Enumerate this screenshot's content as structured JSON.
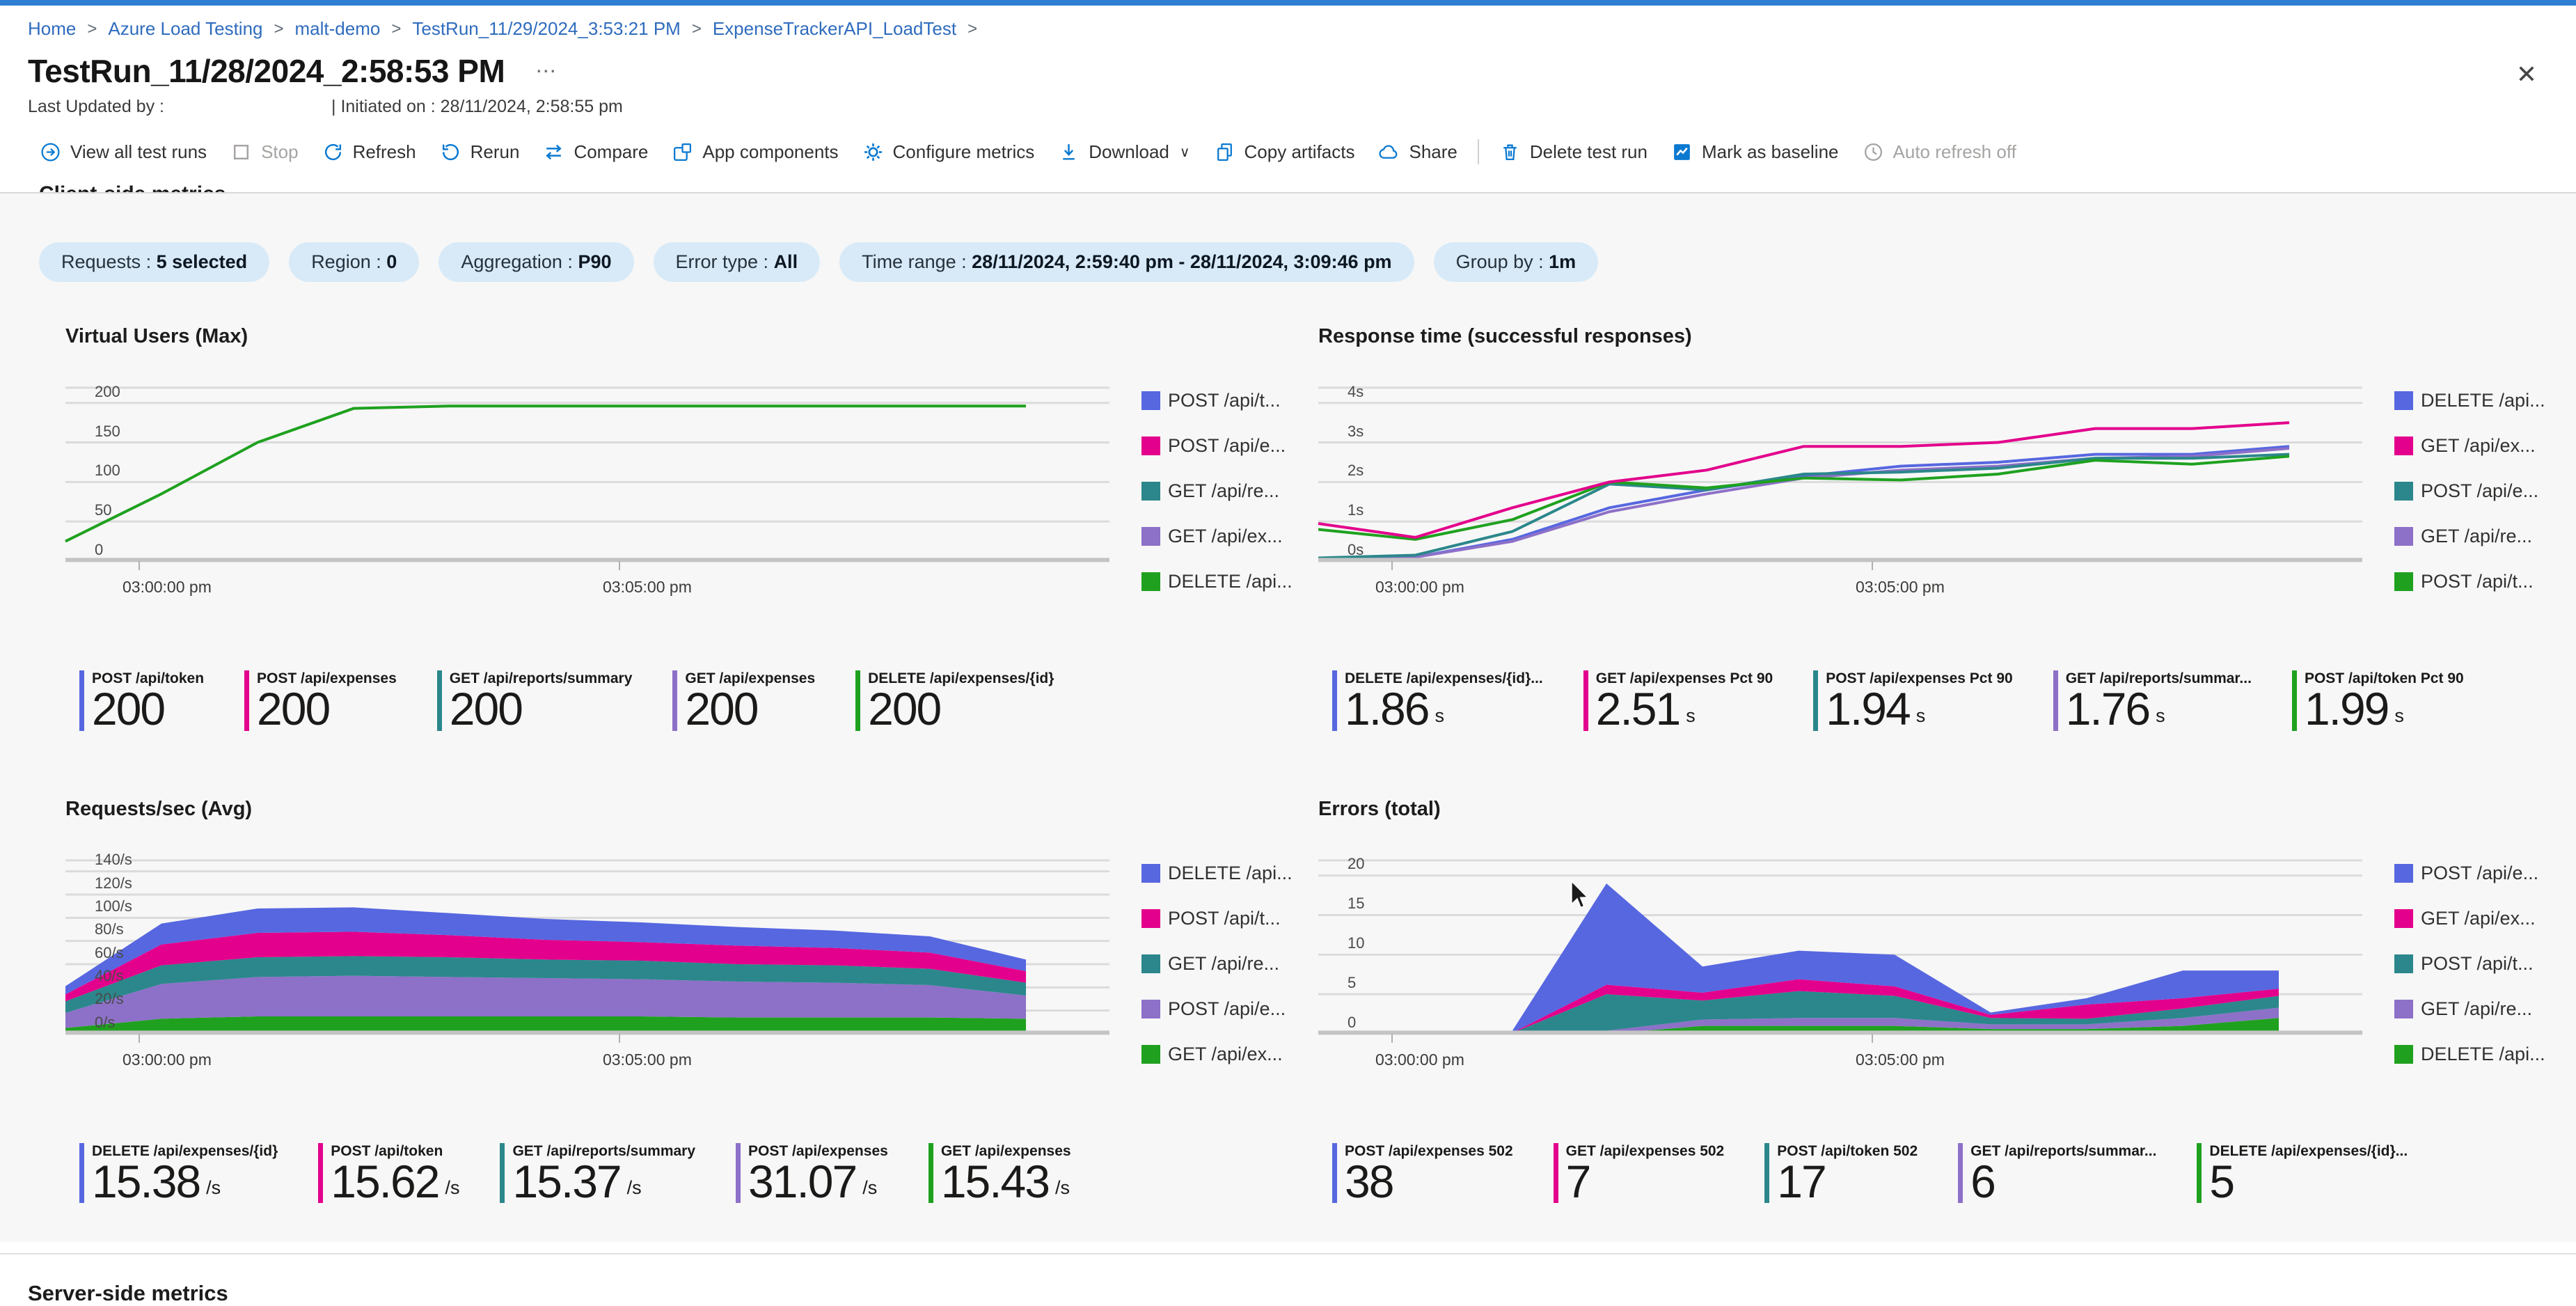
{
  "colors": {
    "blue": "#5767e0",
    "magenta": "#e3008c",
    "teal": "#2b878b",
    "purple": "#8d70c8",
    "green": "#1fa11f"
  },
  "breadcrumb": {
    "items": [
      {
        "label": "Home",
        "sep": ">"
      },
      {
        "label": "Azure Load Testing",
        "sep": ">"
      },
      {
        "label": "malt-demo",
        "sep": ">"
      },
      {
        "label": "TestRun_11/29/2024_3:53:21 PM",
        "sep": ">"
      },
      {
        "label": "ExpenseTrackerAPI_LoadTest",
        "sep": ">"
      }
    ]
  },
  "header": {
    "title": "TestRun_11/28/2024_2:58:53 PM",
    "ellipsis": "⋯",
    "close": "✕",
    "last_updated": "Last Updated by :",
    "initiated": "| Initiated on : 28/11/2024, 2:58:55 pm"
  },
  "toolbar": {
    "view_all": "View all test runs",
    "stop": "Stop",
    "refresh": "Refresh",
    "rerun": "Rerun",
    "compare": "Compare",
    "app_components": "App components",
    "configure_metrics": "Configure metrics",
    "download": "Download",
    "download_chevron": "∨",
    "copy_artifacts": "Copy artifacts",
    "share": "Share",
    "delete": "Delete test run",
    "baseline": "Mark as baseline",
    "auto_refresh": "Auto refresh off"
  },
  "sections": {
    "client_side": "Client-side metrics",
    "server_side": "Server-side metrics"
  },
  "filters": {
    "pills": [
      {
        "label": "Requests :",
        "value": "5 selected"
      },
      {
        "label": "Region :",
        "value": "0"
      },
      {
        "label": "Aggregation :",
        "value": "P90"
      },
      {
        "label": "Error type :",
        "value": "All"
      },
      {
        "label": "Time range :",
        "value": "28/11/2024, 2:59:40 pm - 28/11/2024, 3:09:46 pm"
      },
      {
        "label": "Group by :",
        "value": "1m"
      }
    ]
  },
  "chart_data": [
    {
      "id": "virtual-users",
      "title": "Virtual Users (Max)",
      "type": "line",
      "ylim": [
        0,
        220
      ],
      "x_span": 0.92,
      "yticks": [
        {
          "v": 0,
          "label": "0"
        },
        {
          "v": 50,
          "label": "50"
        },
        {
          "v": 100,
          "label": "100"
        },
        {
          "v": 150,
          "label": "150"
        },
        {
          "v": 200,
          "label": "200"
        }
      ],
      "xticks": [
        {
          "pos": 0.07,
          "label": "03:00:00 pm"
        },
        {
          "pos": 0.53,
          "label": "03:05:00 pm"
        }
      ],
      "series": [
        {
          "name": "DELETE /api/expenses/{id}",
          "color": "green",
          "values": [
            25,
            85,
            150,
            193,
            196,
            196,
            196,
            196,
            196,
            196,
            196
          ]
        }
      ],
      "legend": [
        {
          "color": "blue",
          "label": "POST /api/t..."
        },
        {
          "color": "magenta",
          "label": "POST /api/e..."
        },
        {
          "color": "teal",
          "label": "GET /api/re..."
        },
        {
          "color": "purple",
          "label": "GET /api/ex..."
        },
        {
          "color": "green",
          "label": "DELETE /api..."
        }
      ],
      "cards": [
        {
          "color": "blue",
          "label": "POST /api/token",
          "value": "200",
          "unit": ""
        },
        {
          "color": "magenta",
          "label": "POST /api/expenses",
          "value": "200",
          "unit": ""
        },
        {
          "color": "teal",
          "label": "GET /api/reports/summary",
          "value": "200",
          "unit": ""
        },
        {
          "color": "purple",
          "label": "GET /api/expenses",
          "value": "200",
          "unit": ""
        },
        {
          "color": "green",
          "label": "DELETE /api/expenses/{id}",
          "value": "200",
          "unit": ""
        }
      ]
    },
    {
      "id": "response-time",
      "title": "Response time (successful responses)",
      "type": "line",
      "ylim": [
        0,
        4.4
      ],
      "x_span": 0.93,
      "yticks": [
        {
          "v": 0,
          "label": "0s"
        },
        {
          "v": 1,
          "label": "1s"
        },
        {
          "v": 2,
          "label": "2s"
        },
        {
          "v": 3,
          "label": "3s"
        },
        {
          "v": 4,
          "label": "4s"
        }
      ],
      "xticks": [
        {
          "pos": 0.07,
          "label": "03:00:00 pm"
        },
        {
          "pos": 0.53,
          "label": "03:05:00 pm"
        }
      ],
      "series": [
        {
          "name": "DELETE /api/expenses/{id} Pct 90",
          "color": "blue",
          "values": [
            0.05,
            0.1,
            0.55,
            1.35,
            1.8,
            2.15,
            2.4,
            2.5,
            2.7,
            2.7,
            2.9
          ]
        },
        {
          "name": "GET /api/reports/summary Pct 90",
          "color": "purple",
          "values": [
            0.05,
            0.1,
            0.5,
            1.25,
            1.7,
            2.1,
            2.3,
            2.4,
            2.6,
            2.65,
            2.85
          ]
        },
        {
          "name": "POST /api/expenses Pct 90",
          "color": "teal",
          "values": [
            0.08,
            0.15,
            0.75,
            1.95,
            1.8,
            2.2,
            2.25,
            2.35,
            2.6,
            2.6,
            2.7
          ]
        },
        {
          "name": "POST /api/token Pct 90",
          "color": "green",
          "values": [
            0.8,
            0.55,
            1.05,
            2.0,
            1.85,
            2.1,
            2.05,
            2.2,
            2.55,
            2.45,
            2.65
          ]
        },
        {
          "name": "GET /api/expenses Pct 90",
          "color": "magenta",
          "values": [
            0.95,
            0.6,
            1.35,
            2.0,
            2.3,
            2.9,
            2.9,
            3.0,
            3.35,
            3.35,
            3.5
          ]
        }
      ],
      "legend": [
        {
          "color": "blue",
          "label": "DELETE /api..."
        },
        {
          "color": "magenta",
          "label": "GET /api/ex..."
        },
        {
          "color": "teal",
          "label": "POST /api/e..."
        },
        {
          "color": "purple",
          "label": "GET /api/re..."
        },
        {
          "color": "green",
          "label": "POST /api/t..."
        }
      ],
      "cards": [
        {
          "color": "blue",
          "label": "DELETE /api/expenses/{id}...",
          "value": "1.86",
          "unit": "s"
        },
        {
          "color": "magenta",
          "label": "GET /api/expenses Pct 90",
          "value": "2.51",
          "unit": "s"
        },
        {
          "color": "teal",
          "label": "POST /api/expenses Pct 90",
          "value": "1.94",
          "unit": "s"
        },
        {
          "color": "purple",
          "label": "GET /api/reports/summar...",
          "value": "1.76",
          "unit": "s"
        },
        {
          "color": "green",
          "label": "POST /api/token Pct 90",
          "value": "1.99",
          "unit": "s"
        }
      ]
    },
    {
      "id": "requests-per-sec",
      "title": "Requests/sec (Avg)",
      "type": "area",
      "ylim": [
        0,
        150
      ],
      "x_span": 0.92,
      "yticks": [
        {
          "v": 0,
          "label": "0/s"
        },
        {
          "v": 20,
          "label": "20/s"
        },
        {
          "v": 40,
          "label": "40/s"
        },
        {
          "v": 60,
          "label": "60/s"
        },
        {
          "v": 80,
          "label": "80/s"
        },
        {
          "v": 100,
          "label": "100/s"
        },
        {
          "v": 120,
          "label": "120/s"
        },
        {
          "v": 140,
          "label": "140/s"
        }
      ],
      "xticks": [
        {
          "pos": 0.07,
          "label": "03:00:00 pm"
        },
        {
          "pos": 0.53,
          "label": "03:05:00 pm"
        }
      ],
      "series": [
        {
          "name": "GET /api/expenses",
          "color": "green",
          "values": [
            5,
            13,
            15,
            15,
            15,
            15,
            15,
            14,
            14,
            14,
            13
          ]
        },
        {
          "name": "POST /api/expenses",
          "color": "purple",
          "values": [
            13,
            30,
            34,
            35,
            34,
            33,
            32,
            31,
            30,
            28,
            20
          ]
        },
        {
          "name": "GET /api/reports/summary",
          "color": "teal",
          "values": [
            10,
            16,
            17,
            17,
            17,
            16,
            16,
            15,
            15,
            14,
            11
          ]
        },
        {
          "name": "POST /api/token",
          "color": "magenta",
          "values": [
            6,
            18,
            21,
            21,
            19,
            17,
            16,
            16,
            15,
            14,
            10
          ]
        },
        {
          "name": "DELETE /api/expenses/{id}",
          "color": "blue",
          "values": [
            7,
            18,
            21,
            21,
            19,
            18,
            17,
            16,
            15,
            14,
            10
          ]
        }
      ],
      "legend": [
        {
          "color": "blue",
          "label": "DELETE /api..."
        },
        {
          "color": "magenta",
          "label": "POST /api/t..."
        },
        {
          "color": "teal",
          "label": "GET /api/re..."
        },
        {
          "color": "purple",
          "label": "POST /api/e..."
        },
        {
          "color": "green",
          "label": "GET /api/ex..."
        }
      ],
      "cards": [
        {
          "color": "blue",
          "label": "DELETE /api/expenses/{id}",
          "value": "15.38",
          "unit": "/s"
        },
        {
          "color": "magenta",
          "label": "POST /api/token",
          "value": "15.62",
          "unit": "/s"
        },
        {
          "color": "teal",
          "label": "GET /api/reports/summary",
          "value": "15.37",
          "unit": "/s"
        },
        {
          "color": "purple",
          "label": "POST /api/expenses",
          "value": "31.07",
          "unit": "/s"
        },
        {
          "color": "green",
          "label": "GET /api/expenses",
          "value": "15.43",
          "unit": "/s"
        }
      ]
    },
    {
      "id": "errors-total",
      "title": "Errors (total)",
      "type": "area",
      "ylim": [
        0,
        22
      ],
      "x_span": 0.92,
      "yticks": [
        {
          "v": 0,
          "label": "0"
        },
        {
          "v": 5,
          "label": "5"
        },
        {
          "v": 10,
          "label": "10"
        },
        {
          "v": 15,
          "label": "15"
        },
        {
          "v": 20,
          "label": "20"
        }
      ],
      "xticks": [
        {
          "pos": 0.07,
          "label": "03:00:00 pm"
        },
        {
          "pos": 0.53,
          "label": "03:05:00 pm"
        }
      ],
      "series": [
        {
          "name": "DELETE /api/expenses/{id} 502",
          "color": "green",
          "values": [
            0,
            0,
            0,
            0,
            1,
            1,
            1,
            0.6,
            0.6,
            1,
            2
          ]
        },
        {
          "name": "GET /api/reports/summary 502",
          "color": "purple",
          "values": [
            0,
            0,
            0,
            0.4,
            0.8,
            1,
            1,
            0.6,
            0.6,
            1,
            1.3
          ]
        },
        {
          "name": "POST /api/token 502",
          "color": "teal",
          "values": [
            0,
            0,
            0,
            4.6,
            2.4,
            3.4,
            2.8,
            0.8,
            0.7,
            1.2,
            1.5
          ]
        },
        {
          "name": "GET /api/expenses 502",
          "color": "magenta",
          "values": [
            0,
            0,
            0,
            1.2,
            1,
            1.5,
            1.2,
            0.4,
            1.8,
            1.3,
            0.9
          ]
        },
        {
          "name": "POST /api/expenses 502",
          "color": "blue",
          "values": [
            0,
            0,
            0,
            12.8,
            3.3,
            3.6,
            4,
            0.3,
            0.8,
            3.5,
            2.3
          ]
        }
      ],
      "legend": [
        {
          "color": "blue",
          "label": "POST /api/e..."
        },
        {
          "color": "magenta",
          "label": "GET /api/ex..."
        },
        {
          "color": "teal",
          "label": "POST /api/t..."
        },
        {
          "color": "purple",
          "label": "GET /api/re..."
        },
        {
          "color": "green",
          "label": "DELETE /api..."
        }
      ],
      "cards": [
        {
          "color": "blue",
          "label": "POST /api/expenses 502",
          "value": "38",
          "unit": ""
        },
        {
          "color": "magenta",
          "label": "GET /api/expenses 502",
          "value": "7",
          "unit": ""
        },
        {
          "color": "teal",
          "label": "POST /api/token 502",
          "value": "17",
          "unit": ""
        },
        {
          "color": "purple",
          "label": "GET /api/reports/summar...",
          "value": "6",
          "unit": ""
        },
        {
          "color": "green",
          "label": "DELETE /api/expenses/{id}...",
          "value": "5",
          "unit": ""
        }
      ]
    }
  ]
}
